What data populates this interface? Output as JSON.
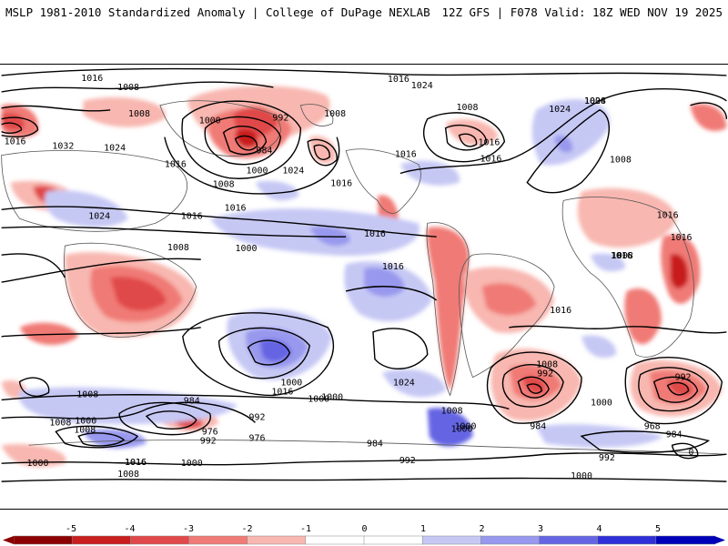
{
  "header": {
    "left": "MSLP 1981-2010 Standardized Anomaly | College of DuPage NEXLAB",
    "right": "12Z GFS | F078 Valid: 18Z WED NOV 19 2025"
  },
  "colorbar": {
    "ticks": [
      "-5",
      "-4",
      "-3",
      "-2",
      "-1",
      "0",
      "1",
      "2",
      "3",
      "4",
      "5"
    ],
    "colors": [
      "#8b0000",
      "#c81e1e",
      "#e0484a",
      "#f07a76",
      "#f8b7b0",
      "#ffffff",
      "#ffffff",
      "#c6c8f4",
      "#9898ee",
      "#6565e4",
      "#3030d8",
      "#0000b8"
    ]
  },
  "map": {
    "contour_labels": [
      {
        "t": "1016"
      },
      {
        "t": "1008"
      },
      {
        "t": "1008"
      },
      {
        "t": "1016"
      },
      {
        "t": "1032"
      },
      {
        "t": "1024"
      },
      {
        "t": "1000"
      },
      {
        "t": "992"
      },
      {
        "t": "984"
      },
      {
        "t": "1008"
      },
      {
        "t": "1000"
      },
      {
        "t": "1024"
      },
      {
        "t": "1008"
      },
      {
        "t": "1016"
      },
      {
        "t": "1016"
      },
      {
        "t": "1016"
      },
      {
        "t": "1024"
      },
      {
        "t": "1016"
      },
      {
        "t": "1008"
      },
      {
        "t": "1000"
      },
      {
        "t": "1016"
      },
      {
        "t": "1016"
      },
      {
        "t": "1024"
      },
      {
        "t": "1016"
      },
      {
        "t": "1008"
      },
      {
        "t": "1016"
      },
      {
        "t": "1024"
      },
      {
        "t": "1008"
      },
      {
        "t": "1008"
      },
      {
        "t": "1016"
      },
      {
        "t": "1016"
      },
      {
        "t": "1008"
      },
      {
        "t": "1016"
      },
      {
        "t": "1016"
      },
      {
        "t": "1016"
      },
      {
        "t": "1024"
      },
      {
        "t": "1016"
      },
      {
        "t": "1000"
      },
      {
        "t": "1024"
      },
      {
        "t": "1016"
      },
      {
        "t": "1008"
      },
      {
        "t": "992"
      },
      {
        "t": "984"
      },
      {
        "t": "1000"
      },
      {
        "t": "992"
      },
      {
        "t": "968"
      },
      {
        "t": "984"
      },
      {
        "t": "0"
      },
      {
        "t": "1016"
      },
      {
        "t": "1008"
      },
      {
        "t": "1000"
      },
      {
        "t": "1008"
      },
      {
        "t": "984"
      },
      {
        "t": "992"
      },
      {
        "t": "976"
      },
      {
        "t": "992"
      },
      {
        "t": "976"
      },
      {
        "t": "1016"
      },
      {
        "t": "1000"
      },
      {
        "t": "1000"
      },
      {
        "t": "1008"
      },
      {
        "t": "1000"
      },
      {
        "t": "984"
      },
      {
        "t": "992"
      },
      {
        "t": "1000"
      },
      {
        "t": "1008"
      },
      {
        "t": "1000"
      },
      {
        "t": "1008"
      },
      {
        "t": "1000"
      },
      {
        "t": "992"
      },
      {
        "t": "1000"
      }
    ]
  }
}
